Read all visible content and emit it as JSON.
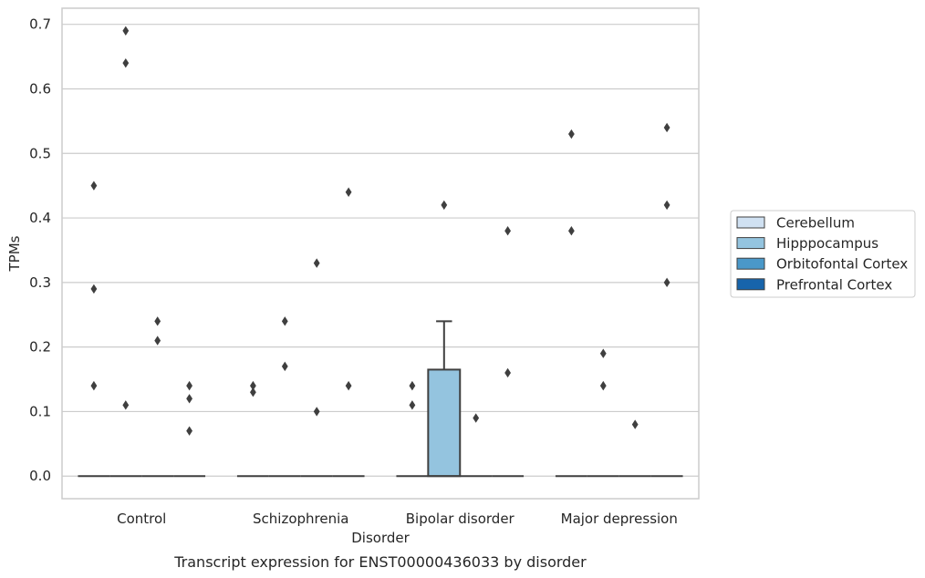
{
  "caption": "Transcript expression for ENST00000436033 by disorder",
  "chart_data": {
    "type": "box",
    "xlabel": "Disorder",
    "ylabel": "TPMs",
    "ylim": [
      -0.035,
      0.725
    ],
    "yticks": [
      0.0,
      0.1,
      0.2,
      0.3,
      0.4,
      0.5,
      0.6,
      0.7
    ],
    "ytick_labels": [
      "0.0",
      "0.1",
      "0.2",
      "0.3",
      "0.4",
      "0.5",
      "0.6",
      "0.7"
    ],
    "grid": true,
    "legend_position": "right",
    "categories": [
      "Control",
      "Schizophrenia",
      "Bipolar disorder",
      "Major depression"
    ],
    "series": [
      {
        "name": "Cerebellum",
        "color": "#d0e1f2",
        "boxes": [
          {
            "q1": 0,
            "median": 0,
            "q3": 0,
            "whisker_low": 0,
            "whisker_high": 0,
            "outliers": [
              0.45,
              0.29,
              0.14
            ]
          },
          {
            "q1": 0,
            "median": 0,
            "q3": 0,
            "whisker_low": 0,
            "whisker_high": 0,
            "outliers": [
              0.14,
              0.13
            ]
          },
          {
            "q1": 0,
            "median": 0,
            "q3": 0,
            "whisker_low": 0,
            "whisker_high": 0,
            "outliers": [
              0.14,
              0.11
            ]
          },
          {
            "q1": 0,
            "median": 0,
            "q3": 0,
            "whisker_low": 0,
            "whisker_high": 0,
            "outliers": [
              0.53,
              0.38
            ]
          }
        ]
      },
      {
        "name": "Hipppocampus",
        "color": "#94c4df",
        "boxes": [
          {
            "q1": 0,
            "median": 0,
            "q3": 0,
            "whisker_low": 0,
            "whisker_high": 0,
            "outliers": [
              0.69,
              0.64,
              0.11
            ]
          },
          {
            "q1": 0,
            "median": 0,
            "q3": 0,
            "whisker_low": 0,
            "whisker_high": 0,
            "outliers": [
              0.24,
              0.17
            ]
          },
          {
            "q1": 0,
            "median": 0,
            "q3": 0.165,
            "whisker_low": 0,
            "whisker_high": 0.24,
            "outliers": [
              0.42
            ]
          },
          {
            "q1": 0,
            "median": 0,
            "q3": 0,
            "whisker_low": 0,
            "whisker_high": 0,
            "outliers": [
              0.19,
              0.14
            ]
          }
        ]
      },
      {
        "name": "Orbitofontal Cortex",
        "color": "#4a98c9",
        "boxes": [
          {
            "q1": 0,
            "median": 0,
            "q3": 0,
            "whisker_low": 0,
            "whisker_high": 0,
            "outliers": [
              0.24,
              0.21
            ]
          },
          {
            "q1": 0,
            "median": 0,
            "q3": 0,
            "whisker_low": 0,
            "whisker_high": 0,
            "outliers": [
              0.33,
              0.1
            ]
          },
          {
            "q1": 0,
            "median": 0,
            "q3": 0,
            "whisker_low": 0,
            "whisker_high": 0,
            "outliers": [
              0.09
            ]
          },
          {
            "q1": 0,
            "median": 0,
            "q3": 0,
            "whisker_low": 0,
            "whisker_high": 0,
            "outliers": [
              0.08
            ]
          }
        ]
      },
      {
        "name": "Prefrontal Cortex",
        "color": "#1764ab",
        "boxes": [
          {
            "q1": 0,
            "median": 0,
            "q3": 0,
            "whisker_low": 0,
            "whisker_high": 0,
            "outliers": [
              0.14,
              0.12,
              0.07
            ]
          },
          {
            "q1": 0,
            "median": 0,
            "q3": 0,
            "whisker_low": 0,
            "whisker_high": 0,
            "outliers": [
              0.44,
              0.14
            ]
          },
          {
            "q1": 0,
            "median": 0,
            "q3": 0,
            "whisker_low": 0,
            "whisker_high": 0,
            "outliers": [
              0.38,
              0.16
            ]
          },
          {
            "q1": 0,
            "median": 0,
            "q3": 0,
            "whisker_low": 0,
            "whisker_high": 0,
            "outliers": [
              0.54,
              0.42,
              0.3
            ]
          }
        ]
      }
    ]
  }
}
